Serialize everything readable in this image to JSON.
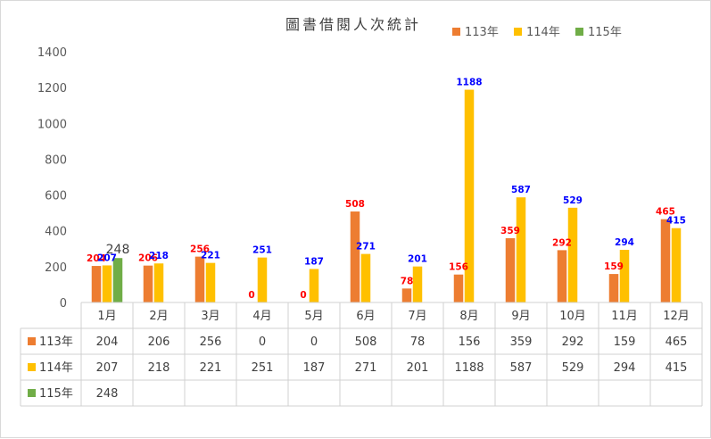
{
  "chart_data": {
    "type": "bar",
    "title": "圖書借閱人次統計",
    "categories": [
      "1月",
      "2月",
      "3月",
      "4月",
      "5月",
      "6月",
      "7月",
      "8月",
      "9月",
      "10月",
      "11月",
      "12月"
    ],
    "series": [
      {
        "name": "113年",
        "color": "#ed7d31",
        "label_color": "#ff0000",
        "values": [
          204,
          206,
          256,
          0,
          0,
          508,
          78,
          156,
          359,
          292,
          159,
          465
        ]
      },
      {
        "name": "114年",
        "color": "#ffc000",
        "label_color": "#0000ff",
        "values": [
          207,
          218,
          221,
          251,
          187,
          271,
          201,
          1188,
          587,
          529,
          294,
          415
        ]
      },
      {
        "name": "115年",
        "color": "#70ad47",
        "label_color": "#404040",
        "values": [
          248,
          null,
          null,
          null,
          null,
          null,
          null,
          null,
          null,
          null,
          null,
          null
        ]
      }
    ],
    "yticks": [
      "0",
      "200",
      "400",
      "600",
      "800",
      "1000",
      "1200",
      "1400"
    ],
    "ylim": [
      0,
      1400
    ],
    "legend_position": "top-right",
    "data_table": true,
    "grid": false
  }
}
